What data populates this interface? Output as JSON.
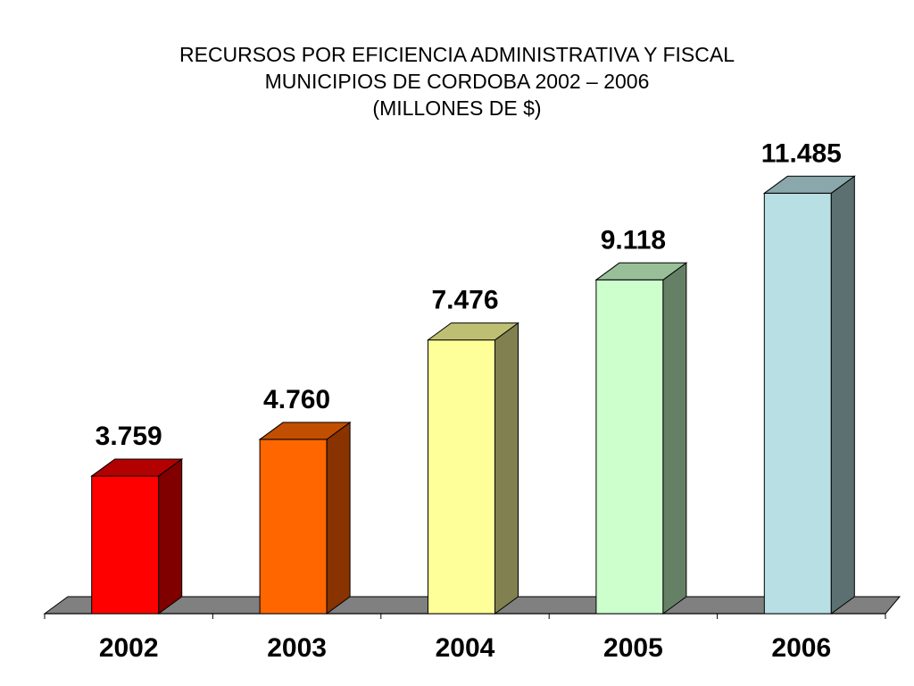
{
  "chart_data": {
    "type": "bar",
    "title": "RECURSOS POR EFICIENCIA ADMINISTRATIVA Y FISCAL",
    "subtitle": "MUNICIPIOS DE CORDOBA 2002 – 2006",
    "unit_note": "(MILLONES DE $)",
    "categories": [
      "2002",
      "2003",
      "2004",
      "2005",
      "2006"
    ],
    "values": [
      3759,
      4760,
      7476,
      9118,
      11485
    ],
    "value_labels": [
      "3.759",
      "4.760",
      "7.476",
      "9.118",
      "11.485"
    ],
    "ylim": [
      0,
      12200
    ],
    "xlabel": "",
    "ylabel": "",
    "grid": false,
    "legend": "none",
    "bar_colors": [
      {
        "front": "#ff0000",
        "top": "#b30000",
        "side": "#800000"
      },
      {
        "front": "#ff6600",
        "top": "#c24e00",
        "side": "#883300"
      },
      {
        "front": "#ffff99",
        "top": "#bfbf73",
        "side": "#808050"
      },
      {
        "front": "#ccffcc",
        "top": "#99bf99",
        "side": "#668066"
      },
      {
        "front": "#b8e0e4",
        "top": "#8aa8ab",
        "side": "#5c7072"
      }
    ],
    "floor_color": "#808080"
  }
}
